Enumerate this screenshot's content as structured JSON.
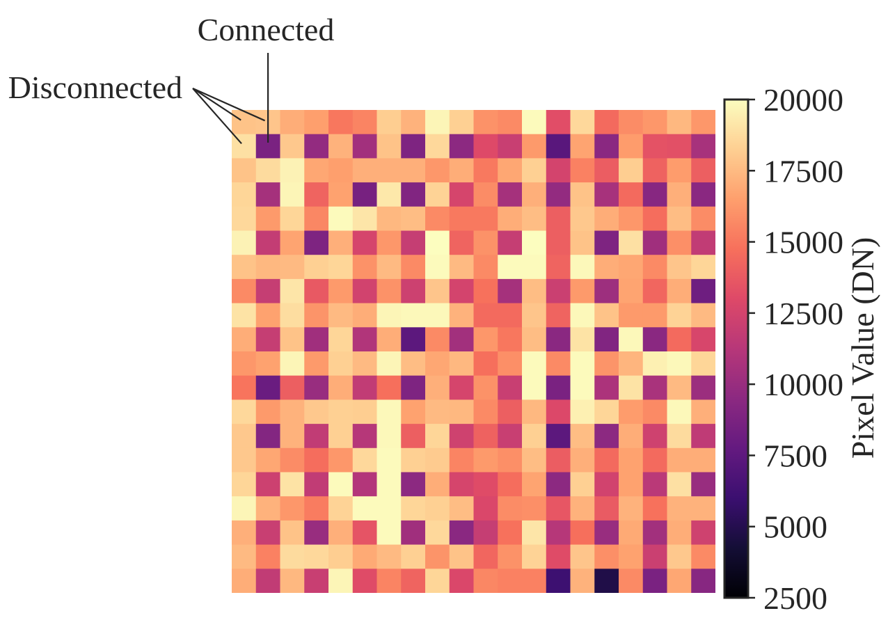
{
  "chart_data": {
    "type": "heatmap",
    "z": [
      [
        17800,
        17900,
        17000,
        16500,
        15000,
        15500,
        18200,
        17200,
        19700,
        18300,
        16000,
        15700,
        19900,
        13200,
        18600,
        14500,
        15800,
        16200,
        17400,
        16200
      ],
      [
        18900,
        8700,
        18000,
        9800,
        17200,
        10400,
        17800,
        8900,
        18600,
        9500,
        13000,
        12000,
        16300,
        7300,
        16700,
        9400,
        16400,
        13400,
        13300,
        10600
      ],
      [
        17800,
        18700,
        19600,
        16800,
        16500,
        17100,
        17100,
        17100,
        16200,
        17000,
        15100,
        16800,
        18300,
        12500,
        15400,
        13900,
        18200,
        14100,
        16400,
        14000
      ],
      [
        18500,
        10500,
        19700,
        14200,
        16600,
        8600,
        19200,
        9000,
        18400,
        12600,
        15800,
        10500,
        17100,
        9800,
        17800,
        10600,
        14500,
        9300,
        17100,
        9400
      ],
      [
        18600,
        16300,
        18500,
        15600,
        19900,
        19100,
        17400,
        17600,
        15700,
        15100,
        15100,
        17000,
        17600,
        14000,
        18000,
        17000,
        16200,
        14600,
        17600,
        15800
      ],
      [
        19600,
        11800,
        16700,
        8900,
        17100,
        12600,
        16200,
        11900,
        20000,
        14200,
        16000,
        11900,
        20000,
        14000,
        17800,
        8900,
        18900,
        10300,
        15900,
        11700
      ],
      [
        17800,
        17400,
        17500,
        18300,
        18500,
        16000,
        17500,
        15700,
        19900,
        17500,
        15700,
        19900,
        19900,
        14200,
        19800,
        17000,
        16800,
        15700,
        17900,
        18500
      ],
      [
        15700,
        11900,
        19100,
        13700,
        16300,
        12400,
        16000,
        12200,
        17900,
        12500,
        14800,
        10500,
        17600,
        12100,
        16300,
        10200,
        16700,
        14300,
        17000,
        8200
      ],
      [
        19000,
        16600,
        18800,
        16100,
        17500,
        17000,
        19700,
        19800,
        19800,
        17200,
        14500,
        14500,
        17900,
        14200,
        19800,
        17800,
        16300,
        16300,
        18400,
        17500
      ],
      [
        17000,
        11900,
        17800,
        10300,
        18500,
        11000,
        17000,
        7400,
        15700,
        10400,
        16200,
        15000,
        17600,
        9400,
        19000,
        9000,
        19800,
        9400,
        14500,
        12700
      ],
      [
        16200,
        16600,
        19700,
        16300,
        18300,
        17500,
        19700,
        17600,
        16800,
        17400,
        14700,
        15900,
        19900,
        15700,
        19900,
        16100,
        17300,
        19500,
        19800,
        18500
      ],
      [
        14900,
        8000,
        14000,
        10000,
        17000,
        11700,
        14700,
        8900,
        17100,
        12600,
        16000,
        12000,
        19900,
        8700,
        19900,
        10800,
        19000,
        10700,
        17500,
        10100
      ],
      [
        18600,
        16300,
        17200,
        18000,
        18300,
        18200,
        19800,
        16600,
        17500,
        17400,
        15700,
        14000,
        17400,
        12900,
        19500,
        18500,
        16400,
        15700,
        19800,
        17100
      ],
      [
        18000,
        9100,
        17200,
        11700,
        18300,
        11200,
        19800,
        14000,
        18500,
        12300,
        14100,
        12000,
        18300,
        7400,
        17600,
        9500,
        17000,
        12300,
        18700,
        11600
      ],
      [
        18000,
        16800,
        15800,
        14600,
        16200,
        18600,
        19900,
        18300,
        18100,
        15500,
        16300,
        15900,
        17600,
        13900,
        17100,
        14500,
        16600,
        14500,
        17000,
        17000
      ],
      [
        18500,
        12200,
        19000,
        11700,
        19900,
        11100,
        19900,
        9500,
        17000,
        12600,
        13100,
        14600,
        16700,
        9500,
        18300,
        12400,
        16600,
        11400,
        18900,
        10000
      ],
      [
        19700,
        17200,
        16200,
        15200,
        18400,
        19900,
        19900,
        18500,
        18300,
        17600,
        12800,
        15800,
        15900,
        13600,
        17200,
        13800,
        17200,
        14800,
        17200,
        17200
      ],
      [
        17100,
        12000,
        17800,
        10000,
        17100,
        13500,
        19900,
        10300,
        18600,
        9400,
        11900,
        14800,
        19100,
        11200,
        14700,
        10000,
        16900,
        10400,
        17000,
        12300
      ],
      [
        17500,
        15400,
        18700,
        18600,
        18200,
        16900,
        17500,
        18300,
        16100,
        17800,
        14300,
        16000,
        18400,
        13100,
        17900,
        15900,
        16600,
        12100,
        18000,
        15700
      ],
      [
        17000,
        11700,
        17400,
        12000,
        19700,
        13100,
        15500,
        14200,
        18500,
        12800,
        15600,
        15400,
        15400,
        6100,
        17200,
        4800,
        15700,
        8700,
        16800,
        9300
      ]
    ],
    "zlim": [
      2500,
      20000
    ],
    "colormap": [
      "#000004",
      "#140e36",
      "#3b0f70",
      "#641a80",
      "#8c2981",
      "#b73779",
      "#de4968",
      "#f7705c",
      "#fe9f6d",
      "#fecf92",
      "#fcfdbf"
    ],
    "colorbar": {
      "label": "Pixel Value (DN)",
      "ticks": [
        2500,
        5000,
        7500,
        10000,
        12500,
        15000,
        17500,
        20000
      ],
      "position": "right"
    },
    "annotations": [
      {
        "text": "Connected",
        "cells": [
          [
            1,
            1
          ]
        ]
      },
      {
        "text": "Disconnected",
        "cells": [
          [
            0,
            0
          ],
          [
            0,
            1
          ],
          [
            1,
            0
          ]
        ]
      }
    ],
    "axes_visible": false,
    "grid": false
  },
  "colors": {
    "ink": "#262626",
    "background": "#ffffff"
  }
}
